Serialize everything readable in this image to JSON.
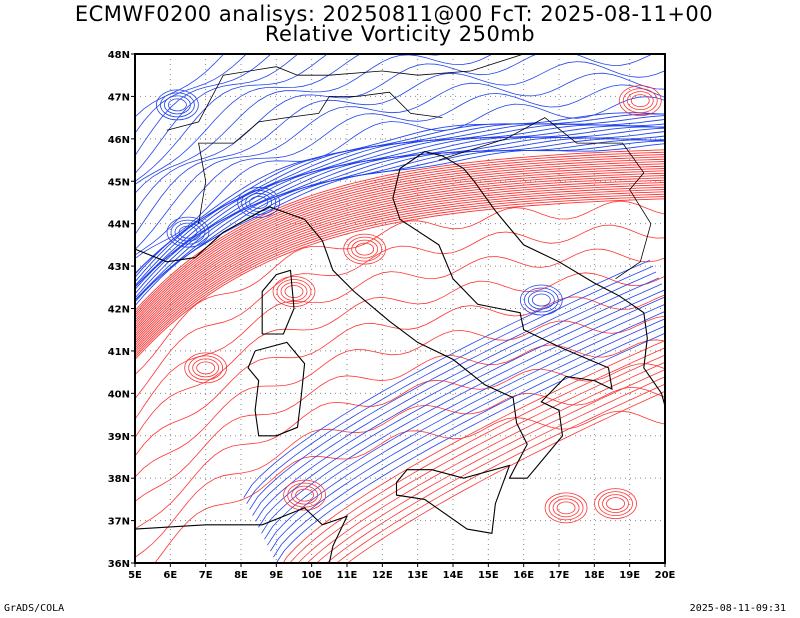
{
  "title_line1": "ECMWF0200 analisys: 20250811@00 FcT: 2025-08-11+00",
  "title_line2": "Relative Vorticity 250mb",
  "footer_left": "GrADS/COLA",
  "footer_right": "2025-08-11-09:31",
  "map": {
    "lon_labels": [
      "5E",
      "6E",
      "7E",
      "8E",
      "9E",
      "10E",
      "11E",
      "12E",
      "13E",
      "14E",
      "15E",
      "16E",
      "17E",
      "18E",
      "19E",
      "20E"
    ],
    "lat_labels": [
      "48N",
      "47N",
      "46N",
      "45N",
      "44N",
      "43N",
      "42N",
      "41N",
      "40N",
      "39N",
      "38N",
      "37N",
      "36N"
    ],
    "lon_range": [
      5,
      20
    ],
    "lat_range": [
      36,
      48
    ],
    "colors": {
      "positive_vorticity": "#ff3333",
      "negative_vorticity": "#2244ee",
      "coastline": "#000000",
      "grid": "#888888"
    }
  }
}
